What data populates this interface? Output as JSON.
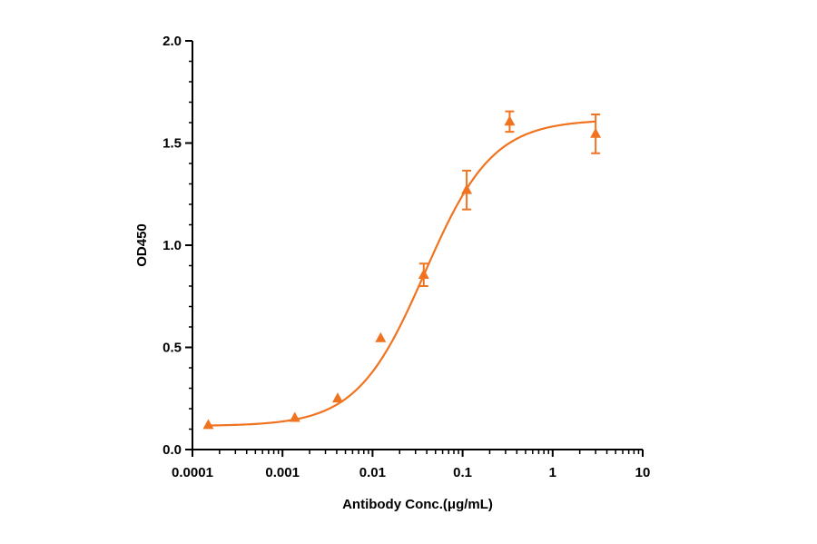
{
  "chart_data": {
    "type": "scatter",
    "title": "",
    "xlabel": "Antibody Conc.(μg/mL)",
    "ylabel": "OD450",
    "x_scale": "log",
    "xlim": [
      0.0001,
      10
    ],
    "ylim": [
      0,
      2.0
    ],
    "x_ticks": [
      0.0001,
      0.001,
      0.01,
      0.1,
      1,
      10
    ],
    "x_tick_labels": [
      "0.0001",
      "0.001",
      "0.01",
      "0.1",
      "1",
      "10"
    ],
    "y_ticks": [
      0,
      0.5,
      1.0,
      1.5,
      2.0
    ],
    "y_tick_labels": [
      "0.0",
      "0.5",
      "1.0",
      "1.5",
      "2.0"
    ],
    "grid": false,
    "color": "#f07420",
    "marker": "triangle",
    "series": [
      {
        "points": [
          {
            "x": 0.00015,
            "y": 0.12,
            "err": 0.0
          },
          {
            "x": 0.00137,
            "y": 0.155,
            "err": 0.0
          },
          {
            "x": 0.0041,
            "y": 0.25,
            "err": 0.0
          },
          {
            "x": 0.0123,
            "y": 0.545,
            "err": 0.0
          },
          {
            "x": 0.037,
            "y": 0.855,
            "err": 0.055
          },
          {
            "x": 0.111,
            "y": 1.27,
            "err": 0.095
          },
          {
            "x": 0.333,
            "y": 1.605,
            "err": 0.05
          },
          {
            "x": 3.0,
            "y": 1.545,
            "err": 0.095
          }
        ],
        "fit": {
          "model": "4PL",
          "bottom": 0.115,
          "top": 1.615,
          "ec50": 0.038,
          "hill": 1.15
        }
      }
    ]
  }
}
